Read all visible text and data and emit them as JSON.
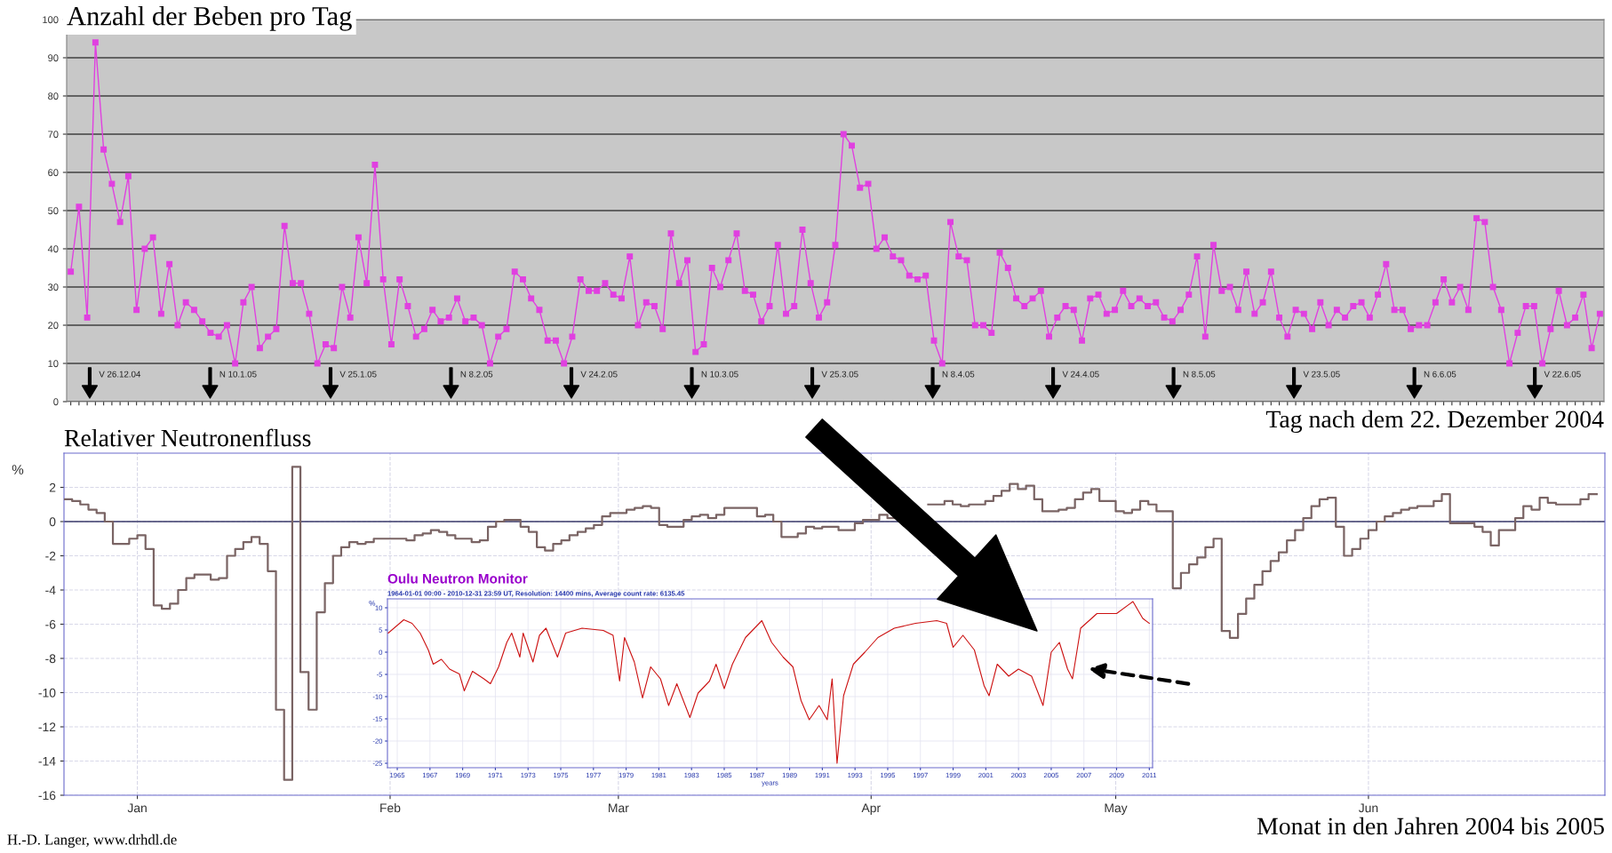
{
  "chart_data": [
    {
      "type": "line",
      "title": "Anzahl der Beben pro Tag",
      "xlabel": "Tag nach dem 22. Dezember 2004",
      "categories": [
        null,
        null,
        null,
        null,
        null,
        null,
        null,
        null,
        null,
        null,
        null,
        null,
        null,
        null,
        null,
        null,
        null,
        null,
        null,
        null,
        null,
        null,
        null,
        null,
        null,
        null,
        null,
        null,
        null,
        null,
        null,
        null,
        null,
        null,
        null,
        null,
        null,
        null,
        null,
        null,
        null,
        null,
        null,
        null,
        null,
        null,
        null,
        null,
        null,
        null,
        null,
        null,
        null,
        null,
        null,
        null,
        null,
        null,
        null,
        null,
        null,
        null,
        null,
        null,
        null,
        null,
        null,
        null,
        null,
        null,
        null,
        null,
        null,
        null,
        null,
        null,
        null,
        null,
        null,
        null,
        null,
        null,
        null,
        null,
        null,
        null,
        null,
        null,
        null,
        null,
        null,
        null,
        null,
        null,
        null,
        null,
        null,
        null,
        null,
        null,
        null,
        null,
        null,
        null,
        null,
        null,
        null,
        null,
        null,
        null,
        null,
        null,
        null,
        null,
        null,
        null,
        null,
        null,
        null,
        null,
        null,
        null,
        null,
        null,
        null,
        null,
        null,
        null,
        null,
        null,
        null,
        null,
        null,
        null,
        null,
        null,
        null,
        null,
        null,
        null,
        null,
        null,
        null,
        null,
        null,
        null,
        null,
        null,
        null,
        null,
        null,
        null,
        null,
        null,
        null,
        null,
        null,
        null,
        null,
        null,
        null,
        null,
        null,
        null,
        null,
        null,
        null,
        null,
        null,
        null,
        null,
        null,
        null,
        null,
        null,
        null,
        null,
        null,
        null,
        null,
        null,
        null,
        null,
        null,
        null,
        null,
        null
      ],
      "series": [
        {
          "color": "#e040e0",
          "values": [
            34,
            51,
            22,
            94,
            66,
            57,
            47,
            59,
            24,
            40,
            43,
            23,
            36,
            20,
            26,
            24,
            21,
            18,
            17,
            20,
            10,
            26,
            30,
            14,
            17,
            19,
            46,
            31,
            31,
            23,
            10,
            15,
            14,
            30,
            22,
            43,
            31,
            62,
            32,
            15,
            32,
            25,
            17,
            19,
            24,
            21,
            22,
            27,
            21,
            22,
            20,
            10,
            17,
            19,
            34,
            32,
            27,
            24,
            16,
            16,
            10,
            17,
            32,
            29,
            29,
            31,
            28,
            27,
            38,
            20,
            26,
            25,
            19,
            44,
            31,
            37,
            13,
            15,
            35,
            30,
            37,
            44,
            29,
            28,
            21,
            25,
            41,
            23,
            25,
            45,
            31,
            22,
            26,
            41,
            70,
            67,
            56,
            57,
            40,
            43,
            38,
            37,
            33,
            32,
            33,
            16,
            10,
            47,
            38,
            37,
            20,
            20,
            18,
            39,
            35,
            27,
            25,
            27,
            29,
            17,
            22,
            25,
            24,
            16,
            27,
            28,
            23,
            24,
            29,
            25,
            27,
            25,
            26,
            22,
            21,
            24,
            28,
            38,
            17,
            41,
            29,
            30,
            24,
            34,
            23,
            26,
            34,
            22,
            17,
            24,
            23,
            19,
            26,
            20,
            24,
            22,
            25,
            26,
            22,
            28,
            36,
            24,
            24,
            19,
            20,
            20,
            26,
            32,
            26,
            30,
            24,
            48,
            47,
            30,
            24,
            10,
            18,
            25,
            25,
            10,
            19,
            29,
            20,
            22,
            28,
            14,
            23
          ]
        }
      ],
      "ylim": [
        0,
        100
      ],
      "yticks": [
        0,
        10,
        20,
        30,
        40,
        50,
        60,
        70,
        80,
        90,
        100
      ],
      "grid": "y",
      "marker": "square",
      "tick_labels": "y",
      "annotations": [
        "V 26.12.04",
        "N 10.1.05",
        "V 25.1.05",
        "N 8.2.05",
        "V 24.2.05",
        "N 10.3.05",
        "V 25.3.05",
        "N 8.4.05",
        "V 24.4.05",
        "N 8.5.05",
        "V 23.5.05",
        "N 6.6.05",
        "V 22.6.05"
      ]
    },
    {
      "type": "step",
      "title": "Relativer Neutronenfluss",
      "xlabel": "Monat in den Jahren 2004 bis 2005",
      "ylabel": "%",
      "x": [
        "2004-12-23",
        "2004-12-24",
        "2004-12-25",
        "2004-12-26",
        "2004-12-27",
        "2004-12-28",
        "2004-12-29",
        "2004-12-31",
        "2005-01-01",
        "2005-01-02",
        "2005-01-03",
        "2005-01-04",
        "2005-01-05",
        "2005-01-06",
        "2005-01-07",
        "2005-01-08",
        "2005-01-10",
        "2005-01-11",
        "2005-01-12",
        "2005-01-13",
        "2005-01-14",
        "2005-01-15",
        "2005-01-16",
        "2005-01-17",
        "2005-01-18",
        "2005-01-19",
        "2005-01-20",
        "2005-01-21",
        "2005-01-22",
        "2005-01-23",
        "2005-01-24",
        "2005-01-25",
        "2005-01-26",
        "2005-01-27",
        "2005-01-28",
        "2005-01-29",
        "2005-01-30",
        "2005-01-31",
        "2005-02-02",
        "2005-02-03",
        "2005-02-04",
        "2005-02-05",
        "2005-02-06",
        "2005-02-07",
        "2005-02-08",
        "2005-02-09",
        "2005-02-11",
        "2005-02-12",
        "2005-02-13",
        "2005-02-14",
        "2005-02-15",
        "2005-02-16",
        "2005-02-17",
        "2005-02-18",
        "2005-02-19",
        "2005-02-20",
        "2005-02-21",
        "2005-02-22",
        "2005-02-23",
        "2005-02-24",
        "2005-02-25",
        "2005-02-26",
        "2005-02-27",
        "2005-02-28",
        "2005-03-02",
        "2005-03-03",
        "2005-03-04",
        "2005-03-05",
        "2005-03-06",
        "2005-03-07",
        "2005-03-09",
        "2005-03-10",
        "2005-03-11",
        "2005-03-12",
        "2005-03-13",
        "2005-03-14",
        "2005-03-15",
        "2005-03-17",
        "2005-03-18",
        "2005-03-19",
        "2005-03-20",
        "2005-03-21",
        "2005-03-23",
        "2005-03-24",
        "2005-03-25",
        "2005-03-26",
        "2005-03-28",
        "2005-03-30",
        "2005-03-31",
        "2005-04-02",
        "2005-04-03",
        "2005-04-04",
        "2005-04-06",
        "2005-04-07",
        "2005-04-08",
        "2005-04-10",
        "2005-04-11",
        "2005-04-12",
        "2005-04-13",
        "2005-04-15",
        "2005-04-16",
        "2005-04-17",
        "2005-04-18",
        "2005-04-19",
        "2005-04-20",
        "2005-04-21",
        "2005-04-22",
        "2005-04-24",
        "2005-04-25",
        "2005-04-26",
        "2005-04-27",
        "2005-04-28",
        "2005-04-29",
        "2005-05-01",
        "2005-05-02",
        "2005-05-03",
        "2005-05-04",
        "2005-05-05",
        "2005-05-06",
        "2005-05-08",
        "2005-05-09",
        "2005-05-10",
        "2005-05-11",
        "2005-05-12",
        "2005-05-13",
        "2005-05-14",
        "2005-05-15",
        "2005-05-16",
        "2005-05-17",
        "2005-05-18",
        "2005-05-19",
        "2005-05-20",
        "2005-05-21",
        "2005-05-22",
        "2005-05-23",
        "2005-05-24",
        "2005-05-25",
        "2005-05-26",
        "2005-05-27",
        "2005-05-28",
        "2005-05-29",
        "2005-05-30",
        "2005-05-31",
        "2005-06-01",
        "2005-06-02",
        "2005-06-03",
        "2005-06-04",
        "2005-06-05",
        "2005-06-06",
        "2005-06-07",
        "2005-06-09",
        "2005-06-10",
        "2005-06-11",
        "2005-06-13",
        "2005-06-14",
        "2005-06-15",
        "2005-06-16",
        "2005-06-17",
        "2005-06-19",
        "2005-06-20",
        "2005-06-21",
        "2005-06-22",
        "2005-06-23",
        "2005-06-24",
        "2005-06-26",
        "2005-06-27",
        "2005-06-28",
        "2005-06-29"
      ],
      "series": [
        {
          "color": "#7a6464",
          "values": [
            1.3,
            1.2,
            1.0,
            0.7,
            0.5,
            0,
            -1.3,
            -1.0,
            -0.8,
            -1.6,
            -4.9,
            -5.1,
            -4.8,
            -4.0,
            -3.3,
            -3.1,
            -3.4,
            -3.3,
            -2.0,
            -1.6,
            -1.2,
            -0.9,
            -1.3,
            -2.9,
            -11.0,
            -15.1,
            3.2,
            -8.8,
            -11.0,
            -5.3,
            -3.6,
            -2.0,
            -1.5,
            -1.2,
            -1.3,
            -1.2,
            -1.0,
            -1.0,
            -1.0,
            -1.1,
            -0.8,
            -0.7,
            -0.5,
            -0.6,
            -0.8,
            -1.0,
            -1.2,
            -1.1,
            -0.3,
            0.0,
            0.1,
            0.1,
            -0.3,
            -0.6,
            -1.5,
            -1.7,
            -1.3,
            -1.1,
            -0.8,
            -0.6,
            -0.4,
            -0.2,
            0.3,
            0.5,
            0.7,
            0.8,
            0.9,
            0.8,
            -0.2,
            -0.3,
            0.1,
            0.3,
            0.4,
            0.2,
            0.4,
            0.8,
            0.8,
            0.8,
            0.3,
            0.4,
            0.0,
            -0.9,
            -0.7,
            -0.3,
            -0.4,
            -0.3,
            -0.5,
            -0.1,
            0.1,
            0.4,
            0.2,
            null,
            null,
            null,
            1.0,
            1.2,
            1.0,
            0.9,
            1.0,
            1.2,
            1.5,
            1.8,
            2.2,
            1.9,
            2.1,
            1.3,
            0.6,
            0.7,
            0.8,
            1.3,
            1.7,
            1.9,
            1.2,
            0.6,
            0.5,
            0.7,
            1.2,
            1.0,
            0.6,
            -3.9,
            -3.0,
            -2.5,
            -2.1,
            -1.5,
            -1.0,
            -6.4,
            -6.8,
            -5.4,
            -4.5,
            -3.7,
            -2.9,
            -2.3,
            -1.8,
            -1.1,
            -0.5,
            0.2,
            0.9,
            1.3,
            1.4,
            -0.3,
            -2.0,
            -1.6,
            -1.0,
            -0.5,
            0.0,
            0.3,
            0.5,
            0.7,
            0.8,
            0.9,
            1.2,
            1.6,
            -0.1,
            -0.1,
            -0.3,
            -0.6,
            -1.4,
            -0.5,
            0.2,
            0.9,
            0.7,
            1.4,
            1.1,
            1.0,
            1.0,
            1.3,
            1.6,
            1.6
          ]
        }
      ],
      "xlim": [
        "2004-12-23",
        "2005-06-30"
      ],
      "xticks": [
        {
          "value": "2005-01-01",
          "label": "Jan"
        },
        {
          "value": "2005-02-01",
          "label": "Feb"
        },
        {
          "value": "2005-03-01",
          "label": "Mar"
        },
        {
          "value": "2005-04-01",
          "label": "Apr"
        },
        {
          "value": "2005-05-01",
          "label": "May"
        },
        {
          "value": "2005-06-01",
          "label": "Jun"
        }
      ],
      "ylim": [
        -16,
        4
      ],
      "yticks": [
        2,
        0,
        -2,
        -4,
        -6,
        -8,
        -10,
        -12,
        -14,
        -16
      ],
      "grid": true,
      "ref_lines": [
        {
          "axis": "y",
          "value": 0,
          "color": "#3a3a6a"
        }
      ],
      "annotations": [
        "H.-D. Langer, www.drhdl.de"
      ]
    },
    {
      "type": "line",
      "title": "Oulu Neutron Monitor",
      "subtitle": "1964-01-01 00:00 - 2010-12-31 23:59 UT, Resolution: 14400 mins, Average count rate: 6135.45",
      "xlabel": "years",
      "ylabel": "%",
      "x": [
        1964.45,
        1965.4,
        1965.9,
        1966.4,
        1966.9,
        1967.2,
        1967.7,
        1968.2,
        1968.8,
        1969.1,
        1969.6,
        1970.3,
        1970.7,
        1971.2,
        1971.7,
        1972.0,
        1972.5,
        1972.7,
        1973.3,
        1973.7,
        1974.1,
        1974.8,
        1975.3,
        1976.3,
        1977.6,
        1978.2,
        1978.6,
        1978.9,
        1979.5,
        1980.0,
        1980.5,
        1981.1,
        1981.6,
        1982.1,
        1982.9,
        1983.4,
        1984.1,
        1984.5,
        1985.0,
        1985.5,
        1986.3,
        1987.3,
        1987.9,
        1988.6,
        1989.2,
        1989.7,
        1990.2,
        1990.8,
        1991.3,
        1991.6,
        1991.9,
        1992.3,
        1992.9,
        1993.6,
        1994.4,
        1995.4,
        1996.7,
        1998.0,
        1998.6,
        1999.0,
        1999.6,
        2000.3,
        2000.9,
        2001.2,
        2001.7,
        2002.4,
        2003.0,
        2003.8,
        2004.5,
        2005.0,
        2005.5,
        2006.0,
        2006.3,
        2006.8,
        2007.8,
        2009.0,
        2010.0,
        2010.6,
        2011.0
      ],
      "series": [
        {
          "color": "#cc1111",
          "values": [
            4.3,
            7.3,
            6.5,
            4.3,
            0.5,
            -2.7,
            -1.6,
            -3.8,
            -4.9,
            -8.7,
            -4.3,
            -6.0,
            -7.1,
            -3.3,
            2.2,
            4.3,
            -1.1,
            4.3,
            -2.2,
            3.8,
            5.4,
            -1.1,
            4.3,
            5.4,
            4.9,
            3.8,
            -6.5,
            3.3,
            -2.2,
            -10.3,
            -3.3,
            -6.0,
            -12.0,
            -7.1,
            -14.7,
            -9.2,
            -6.5,
            -2.7,
            -8.2,
            -2.7,
            3.3,
            7.1,
            2.2,
            -1.1,
            -3.3,
            -10.9,
            -15.2,
            -12.0,
            -15.2,
            -6.0,
            -25,
            -9.8,
            -2.7,
            0.0,
            3.3,
            5.4,
            6.5,
            7.1,
            6.5,
            1.1,
            3.8,
            0.5,
            -7.6,
            -9.8,
            -2.7,
            -5.4,
            -3.8,
            -5.4,
            -12.0,
            0.0,
            2.2,
            -3.8,
            -6.0,
            5.4,
            8.7,
            8.7,
            11.4,
            7.6,
            6.5
          ]
        }
      ],
      "xlim": [
        1964.4,
        2011.2
      ],
      "xticks": [
        1965,
        1967,
        1969,
        1971,
        1973,
        1975,
        1977,
        1979,
        1981,
        1983,
        1985,
        1987,
        1989,
        1991,
        1993,
        1995,
        1997,
        1999,
        2001,
        2003,
        2005,
        2007,
        2009,
        2011
      ],
      "ylim": [
        -26,
        12
      ],
      "yticks": [
        10,
        5,
        0,
        -5,
        -10,
        -15,
        -20,
        -25
      ],
      "grid": true
    }
  ]
}
